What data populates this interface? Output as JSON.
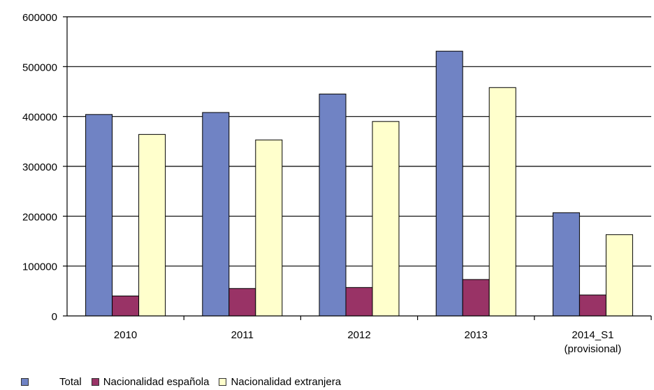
{
  "chart_data": {
    "type": "bar",
    "categories": [
      "2010",
      "2011",
      "2012",
      "2013",
      "2014_S1\n(provisional)"
    ],
    "series": [
      {
        "name": "Total",
        "color": "#7083C4",
        "values": [
          404000,
          408000,
          445000,
          531000,
          207000
        ]
      },
      {
        "name": "Nacionalidad española",
        "color": "#993366",
        "values": [
          40000,
          55000,
          57000,
          73000,
          42000
        ]
      },
      {
        "name": "Nacionalidad extranjera",
        "color": "#FFFFCC",
        "values": [
          364000,
          353000,
          390000,
          458000,
          163000
        ]
      }
    ],
    "ylim": [
      0,
      600000
    ],
    "yticks": [
      0,
      100000,
      200000,
      300000,
      400000,
      500000,
      600000
    ],
    "grid": true,
    "legend_position": "bottom-left",
    "title": "",
    "xlabel": "",
    "ylabel": ""
  }
}
